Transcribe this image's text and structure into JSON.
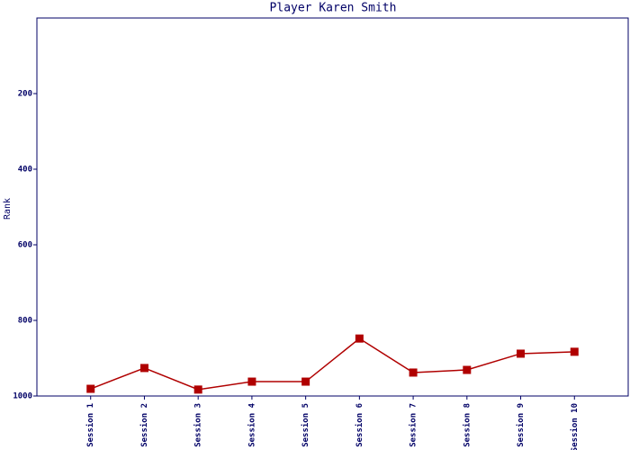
{
  "chart_data": {
    "type": "line",
    "title": "Player Karen Smith",
    "y_label": "Rank",
    "categories": [
      "Session 1",
      "Session 2",
      "Session 3",
      "Session 4",
      "Session 5",
      "Session 6",
      "Session 7",
      "Session 8",
      "Session 9",
      "Session 10"
    ],
    "series": [
      {
        "name": "Rank",
        "color": "#b00000",
        "values": [
          981,
          926,
          983,
          962,
          962,
          848,
          938,
          931,
          888,
          883
        ]
      }
    ],
    "ylim": [
      1000,
      0
    ],
    "yticks": [
      200,
      400,
      600,
      800,
      1000
    ],
    "grid": false
  }
}
